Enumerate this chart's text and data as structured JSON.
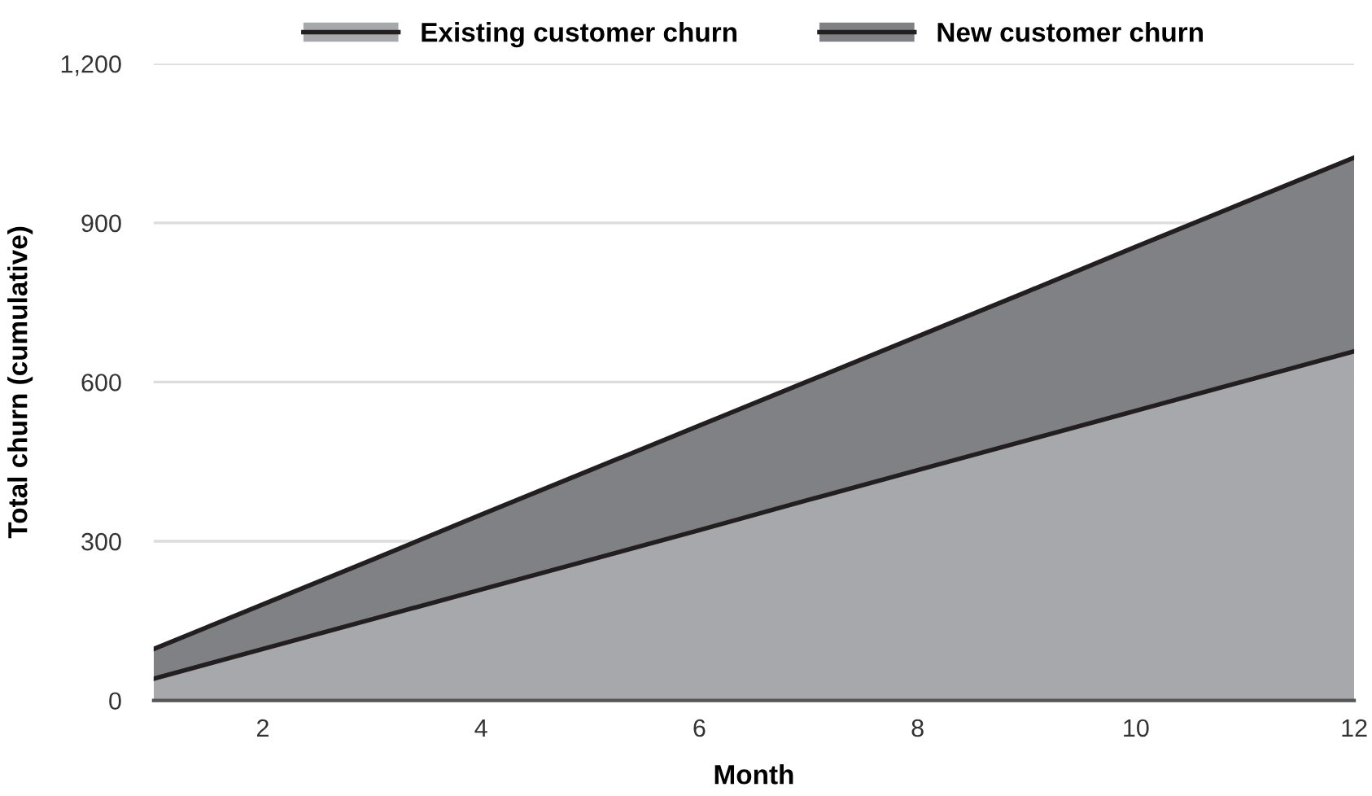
{
  "chart_data": {
    "type": "area",
    "stacked": true,
    "xlabel": "Month",
    "ylabel": "Total churn (cumulative)",
    "x": [
      1,
      2,
      3,
      4,
      5,
      6,
      7,
      8,
      9,
      10,
      11,
      12
    ],
    "series": [
      {
        "name": "Existing customer churn",
        "color": "#a7a8ab",
        "values": [
          41,
          97,
          153,
          209,
          265,
          321,
          378,
          434,
          490,
          546,
          602,
          658
        ]
      },
      {
        "name": "New customer churn",
        "color": "#808184",
        "values": [
          56,
          84,
          112,
          141,
          169,
          197,
          224,
          252,
          280,
          309,
          337,
          365
        ]
      }
    ],
    "xlim": [
      1,
      12
    ],
    "xticks": [
      2,
      4,
      6,
      8,
      10,
      12
    ],
    "ylim": [
      0,
      1200
    ],
    "yticks": [
      0,
      {
        "value": 300,
        "label": "300"
      },
      {
        "value": 600,
        "label": "600"
      },
      {
        "value": 900,
        "label": "900"
      },
      {
        "value": 1200,
        "label": "1,200"
      }
    ],
    "grid": "y",
    "legend": "top"
  }
}
